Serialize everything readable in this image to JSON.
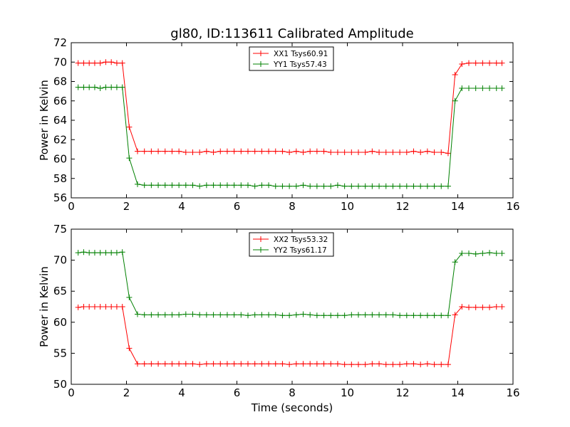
{
  "figure": {
    "title": "gl80, ID:113611 Calibrated Amplitude"
  },
  "chart_data": [
    {
      "type": "line",
      "title": "gl80, ID:113611 Calibrated Amplitude",
      "xlabel": "",
      "ylabel": "Power in Kelvin",
      "xlim": [
        0,
        16
      ],
      "ylim": [
        56,
        72
      ],
      "xticks": [
        "0",
        "2",
        "4",
        "6",
        "8",
        "10",
        "12",
        "14",
        "16"
      ],
      "yticks": [
        "56",
        "58",
        "60",
        "62",
        "64",
        "66",
        "68",
        "70",
        "72"
      ],
      "grid": false,
      "legend_position": "top-center",
      "x": [
        0.25,
        0.45,
        0.65,
        0.85,
        1.05,
        1.25,
        1.45,
        1.65,
        1.85,
        2.1,
        2.4,
        2.65,
        2.9,
        3.15,
        3.4,
        3.65,
        3.9,
        4.15,
        4.4,
        4.65,
        4.9,
        5.15,
        5.4,
        5.65,
        5.9,
        6.15,
        6.4,
        6.65,
        6.9,
        7.15,
        7.4,
        7.65,
        7.9,
        8.15,
        8.4,
        8.65,
        8.9,
        9.15,
        9.4,
        9.65,
        9.9,
        10.15,
        10.4,
        10.65,
        10.9,
        11.15,
        11.4,
        11.65,
        11.9,
        12.15,
        12.4,
        12.65,
        12.9,
        13.15,
        13.4,
        13.65,
        13.9,
        14.15,
        14.4,
        14.65,
        14.9,
        15.15,
        15.4,
        15.6
      ],
      "series": [
        {
          "name": "XX1 Tsys60.91",
          "color": "#ff0000",
          "values": [
            69.9,
            69.9,
            69.9,
            69.9,
            69.9,
            70.0,
            70.0,
            69.9,
            69.9,
            63.3,
            60.8,
            60.8,
            60.8,
            60.8,
            60.8,
            60.8,
            60.8,
            60.7,
            60.7,
            60.7,
            60.8,
            60.7,
            60.8,
            60.8,
            60.8,
            60.8,
            60.8,
            60.8,
            60.8,
            60.8,
            60.8,
            60.8,
            60.7,
            60.8,
            60.7,
            60.8,
            60.8,
            60.8,
            60.7,
            60.7,
            60.7,
            60.7,
            60.7,
            60.7,
            60.8,
            60.7,
            60.7,
            60.7,
            60.7,
            60.7,
            60.8,
            60.7,
            60.8,
            60.7,
            60.7,
            60.6,
            68.7,
            69.8,
            69.9,
            69.9,
            69.9,
            69.9,
            69.9,
            69.9
          ]
        },
        {
          "name": "YY1 Tsys57.43",
          "color": "#008000",
          "values": [
            67.4,
            67.4,
            67.4,
            67.4,
            67.3,
            67.4,
            67.4,
            67.4,
            67.4,
            60.1,
            57.4,
            57.3,
            57.3,
            57.3,
            57.3,
            57.3,
            57.3,
            57.3,
            57.3,
            57.2,
            57.3,
            57.3,
            57.3,
            57.3,
            57.3,
            57.3,
            57.3,
            57.2,
            57.3,
            57.3,
            57.2,
            57.2,
            57.2,
            57.2,
            57.3,
            57.2,
            57.2,
            57.2,
            57.2,
            57.3,
            57.2,
            57.2,
            57.2,
            57.2,
            57.2,
            57.2,
            57.2,
            57.2,
            57.2,
            57.2,
            57.2,
            57.2,
            57.2,
            57.2,
            57.2,
            57.2,
            66.0,
            67.3,
            67.3,
            67.3,
            67.3,
            67.3,
            67.3,
            67.3
          ]
        }
      ]
    },
    {
      "type": "line",
      "title": "",
      "xlabel": "Time (seconds)",
      "ylabel": "Power in Kelvin",
      "xlim": [
        0,
        16
      ],
      "ylim": [
        50,
        75
      ],
      "xticks": [
        "0",
        "2",
        "4",
        "6",
        "8",
        "10",
        "12",
        "14",
        "16"
      ],
      "yticks": [
        "50",
        "55",
        "60",
        "65",
        "70",
        "75"
      ],
      "grid": false,
      "legend_position": "top-center",
      "x": [
        0.25,
        0.45,
        0.65,
        0.85,
        1.05,
        1.25,
        1.45,
        1.65,
        1.85,
        2.1,
        2.4,
        2.65,
        2.9,
        3.15,
        3.4,
        3.65,
        3.9,
        4.15,
        4.4,
        4.65,
        4.9,
        5.15,
        5.4,
        5.65,
        5.9,
        6.15,
        6.4,
        6.65,
        6.9,
        7.15,
        7.4,
        7.65,
        7.9,
        8.15,
        8.4,
        8.65,
        8.9,
        9.15,
        9.4,
        9.65,
        9.9,
        10.15,
        10.4,
        10.65,
        10.9,
        11.15,
        11.4,
        11.65,
        11.9,
        12.15,
        12.4,
        12.65,
        12.9,
        13.15,
        13.4,
        13.65,
        13.9,
        14.15,
        14.4,
        14.65,
        14.9,
        15.15,
        15.4,
        15.6
      ],
      "series": [
        {
          "name": "XX2 Tsys53.32",
          "color": "#ff0000",
          "values": [
            62.4,
            62.5,
            62.5,
            62.5,
            62.5,
            62.5,
            62.5,
            62.5,
            62.5,
            55.8,
            53.3,
            53.3,
            53.3,
            53.3,
            53.3,
            53.3,
            53.3,
            53.3,
            53.3,
            53.2,
            53.3,
            53.3,
            53.3,
            53.3,
            53.3,
            53.3,
            53.3,
            53.3,
            53.3,
            53.3,
            53.3,
            53.3,
            53.2,
            53.3,
            53.3,
            53.3,
            53.3,
            53.3,
            53.3,
            53.3,
            53.2,
            53.2,
            53.2,
            53.2,
            53.3,
            53.3,
            53.2,
            53.2,
            53.2,
            53.3,
            53.3,
            53.2,
            53.3,
            53.2,
            53.2,
            53.2,
            61.2,
            62.5,
            62.4,
            62.4,
            62.4,
            62.4,
            62.5,
            62.5
          ]
        },
        {
          "name": "YY2 Tsys61.17",
          "color": "#008000",
          "values": [
            71.2,
            71.3,
            71.2,
            71.2,
            71.2,
            71.2,
            71.2,
            71.2,
            71.3,
            64.0,
            61.3,
            61.2,
            61.2,
            61.2,
            61.2,
            61.2,
            61.2,
            61.3,
            61.3,
            61.2,
            61.2,
            61.2,
            61.2,
            61.2,
            61.2,
            61.2,
            61.1,
            61.2,
            61.2,
            61.2,
            61.2,
            61.1,
            61.1,
            61.2,
            61.3,
            61.2,
            61.1,
            61.1,
            61.1,
            61.1,
            61.1,
            61.2,
            61.2,
            61.2,
            61.2,
            61.2,
            61.2,
            61.2,
            61.1,
            61.1,
            61.1,
            61.1,
            61.1,
            61.1,
            61.1,
            61.1,
            69.7,
            71.1,
            71.1,
            71.0,
            71.1,
            71.2,
            71.1,
            71.1
          ]
        }
      ]
    }
  ]
}
